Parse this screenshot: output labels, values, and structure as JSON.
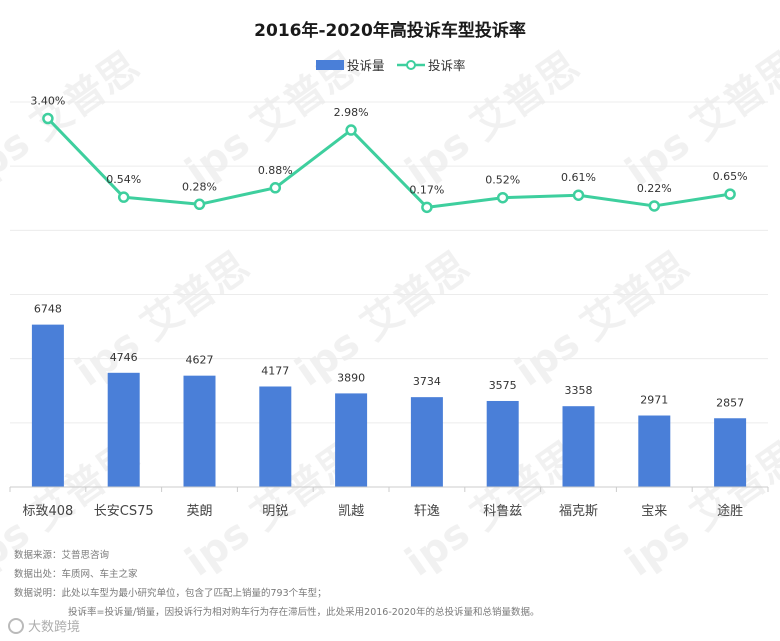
{
  "chart_data": {
    "type": "bar+line",
    "title": "2016年-2020年高投诉车型投诉率",
    "categories": [
      "标致408",
      "长安CS75",
      "英朗",
      "明锐",
      "凯越",
      "轩逸",
      "科鲁兹",
      "福克斯",
      "宝来",
      "途胜"
    ],
    "series": [
      {
        "name": "投诉量",
        "type": "bar",
        "color": "#4a7fd8",
        "values": [
          6748,
          4746,
          4627,
          4177,
          3890,
          3734,
          3575,
          3358,
          2971,
          2857
        ]
      },
      {
        "name": "投诉率",
        "type": "line",
        "color": "#3ecf9e",
        "values": [
          3.4,
          0.54,
          0.28,
          0.88,
          2.98,
          0.17,
          0.52,
          0.61,
          0.22,
          0.65
        ],
        "labels": [
          "3.40%",
          "0.54%",
          "0.28%",
          "0.88%",
          "2.98%",
          "0.17%",
          "0.52%",
          "0.61%",
          "0.22%",
          "0.65%"
        ]
      }
    ],
    "bar_ylim": [
      0,
      16000
    ],
    "line_ylim": [
      -10,
      4
    ],
    "legend_position": "top-center",
    "grid": true
  },
  "notes": {
    "source": "数据来源：艾普思咨询",
    "origin": "数据出处：车质网、车主之家",
    "desc1": "数据说明：此处以车型为最小研究单位，包含了匹配上销量的793个车型；",
    "desc2": "投诉率=投诉量/销量，因投诉行为相对购车行为存在滞后性，此处采用2016-2020年的总投诉量和总销量数据。"
  },
  "watermark": "ips 艾普思",
  "brand": "大数跨境"
}
